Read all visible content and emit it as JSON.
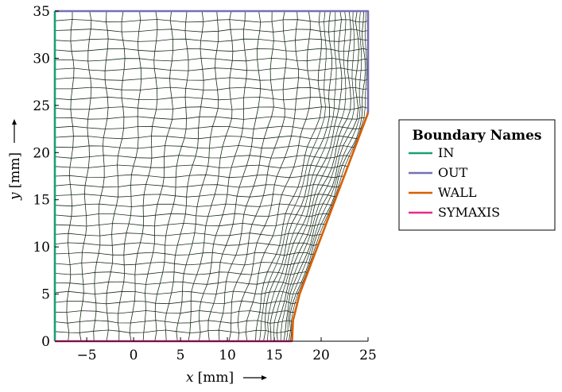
{
  "figure": {
    "xlabel_var": "x",
    "xlabel_unit": "[mm]",
    "ylabel_var": "y",
    "ylabel_unit": "[mm]",
    "x_ticks": [
      "−5",
      "0",
      "5",
      "10",
      "15",
      "20",
      "25"
    ],
    "y_ticks": [
      "0",
      "5",
      "10",
      "15",
      "20",
      "25",
      "30",
      "35"
    ]
  },
  "chart_data": {
    "type": "mesh",
    "x_range_mm": [
      -8.4,
      25
    ],
    "y_range_mm": [
      0,
      35
    ],
    "x_tick_values": [
      -5,
      0,
      5,
      10,
      15,
      20,
      25
    ],
    "y_tick_values": [
      0,
      5,
      10,
      15,
      20,
      25,
      30,
      35
    ],
    "mesh_color": "#1a2e1a",
    "boundaries": [
      {
        "name": "IN",
        "color": "#1b9e77",
        "points": [
          [
            -8.4,
            0
          ],
          [
            -8.4,
            35
          ]
        ]
      },
      {
        "name": "OUT",
        "color": "#7570b3",
        "points": [
          [
            -8.4,
            35
          ],
          [
            25,
            35
          ],
          [
            25,
            24.2
          ]
        ]
      },
      {
        "name": "WALL",
        "color": "#d95f02",
        "points": [
          [
            16.9,
            0
          ],
          [
            17.0,
            2.2
          ],
          [
            17.7,
            5.0
          ],
          [
            25,
            24.2
          ]
        ]
      },
      {
        "name": "SYMAXIS",
        "color": "#e7298a",
        "points": [
          [
            -8.4,
            0
          ],
          [
            16.9,
            0
          ]
        ]
      }
    ]
  },
  "legend": {
    "title": "Boundary Names",
    "items": [
      {
        "label": "IN",
        "color": "#1b9e77"
      },
      {
        "label": "OUT",
        "color": "#7570b3"
      },
      {
        "label": "WALL",
        "color": "#d95f02"
      },
      {
        "label": "SYMAXIS",
        "color": "#e7298a"
      }
    ]
  }
}
